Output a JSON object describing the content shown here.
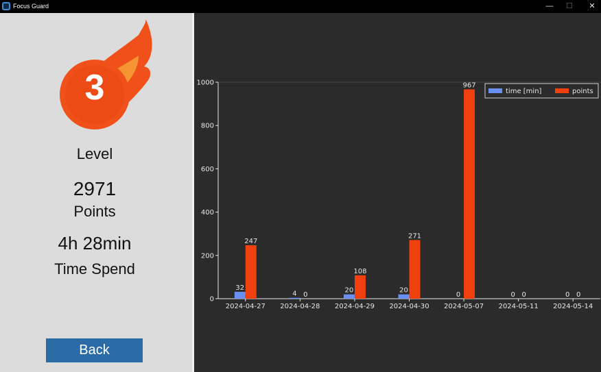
{
  "window": {
    "title": "Focus Guard",
    "controls": {
      "minimize": "—",
      "maximize": "☐",
      "close": "✕"
    }
  },
  "sidebar": {
    "level_number": "3",
    "level_label": "Level",
    "points_value": "2971",
    "points_label": "Points",
    "time_value": "4h 28min",
    "time_label": "Time Spend",
    "back_button": "Back"
  },
  "colors": {
    "time_series": "#6a8ff0",
    "points_series": "#f0400e",
    "chart_bg": "#2b2b2b",
    "sidebar_bg": "#dcdcdc",
    "button_bg": "#2b6ca6"
  },
  "chart_data": {
    "type": "bar",
    "categories": [
      "2024-04-27",
      "2024-04-28",
      "2024-04-29",
      "2024-04-30",
      "2024-05-07",
      "2024-05-11",
      "2024-05-14"
    ],
    "series": [
      {
        "name": "time [min]",
        "values": [
          32,
          4,
          20,
          20,
          0,
          0,
          0
        ]
      },
      {
        "name": "points",
        "values": [
          247,
          0,
          108,
          271,
          967,
          0,
          0
        ]
      }
    ],
    "ylim": [
      0,
      1000
    ],
    "yticks": [
      0,
      200,
      400,
      600,
      800,
      1000
    ],
    "legend": "top-right",
    "grid": false,
    "data_labels": true
  }
}
